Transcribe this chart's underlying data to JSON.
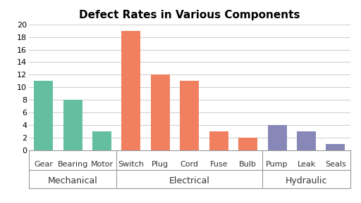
{
  "title": "Defect Rates in Various Components",
  "bars": [
    {
      "label": "Gear",
      "value": 11,
      "color": "#63bfa0"
    },
    {
      "label": "Bearing",
      "value": 8,
      "color": "#63bfa0"
    },
    {
      "label": "Motor",
      "value": 3,
      "color": "#63bfa0"
    },
    {
      "label": "Switch",
      "value": 19,
      "color": "#f08060"
    },
    {
      "label": "Plug",
      "value": 12,
      "color": "#f08060"
    },
    {
      "label": "Cord",
      "value": 11,
      "color": "#f08060"
    },
    {
      "label": "Fuse",
      "value": 3,
      "color": "#f08060"
    },
    {
      "label": "Bulb",
      "value": 2,
      "color": "#f08060"
    },
    {
      "label": "Pump",
      "value": 4,
      "color": "#8888b8"
    },
    {
      "label": "Leak",
      "value": 3,
      "color": "#8888b8"
    },
    {
      "label": "Seals",
      "value": 1,
      "color": "#8888b8"
    }
  ],
  "groups": [
    {
      "name": "Mechanical",
      "indices": [
        0,
        1,
        2
      ],
      "sep_before": null,
      "sep_after": 2.5
    },
    {
      "name": "Electrical",
      "indices": [
        3,
        4,
        5,
        6,
        7
      ],
      "sep_before": 2.5,
      "sep_after": 7.5
    },
    {
      "name": "Hydraulic",
      "indices": [
        8,
        9,
        10
      ],
      "sep_before": 7.5,
      "sep_after": null
    }
  ],
  "ylim": [
    0,
    20
  ],
  "yticks": [
    0,
    2,
    4,
    6,
    8,
    10,
    12,
    14,
    16,
    18,
    20
  ],
  "background_color": "#ffffff",
  "grid_color": "#cccccc",
  "title_fontsize": 11,
  "bar_label_fontsize": 8,
  "group_label_fontsize": 9,
  "ytick_fontsize": 8,
  "bar_width": 0.65,
  "separator_color": "#999999"
}
